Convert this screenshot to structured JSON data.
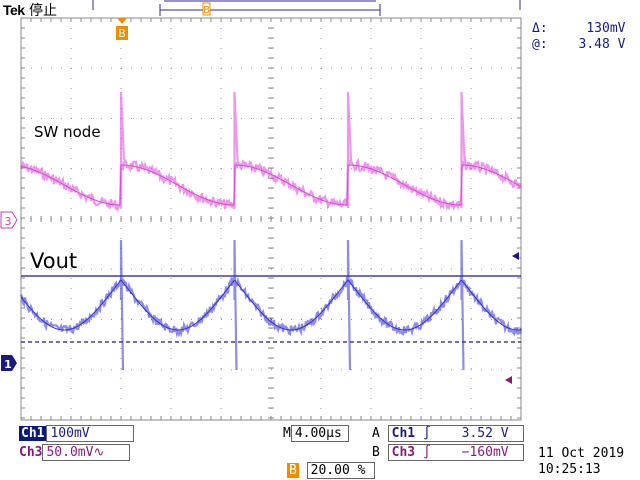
{
  "header": {
    "brand": "Tek",
    "status": "停止"
  },
  "cursor": {
    "delta_symbol": "Δ:",
    "delta_value": "130mV",
    "at_symbol": "@:",
    "at_value": "3.48 V"
  },
  "annotations": {
    "sw_node": "SW node",
    "vout": "Vout"
  },
  "markers": {
    "trigger_marker": "B",
    "ch3_marker": "3",
    "ch1_marker": "1"
  },
  "bottom": {
    "ch1_label": "Ch1",
    "ch1_scale": "100mV",
    "ch3_label": "Ch3",
    "ch3_scale": "50.0mV",
    "ch3_bw_icon": "bandwidth-limit-icon",
    "timebase_prefix": "M",
    "timebase_value": "4.00µs",
    "trig_a_letter": "A",
    "trig_a_ch": "Ch1",
    "trig_a_value": "3.52 V",
    "trig_b_letter": "B",
    "trig_b_ch": "Ch3",
    "trig_b_value": "−160mV",
    "trigger_pos_letter": "B",
    "trigger_pos_value": "20.00 %",
    "date": "11 Oct  2019",
    "time": "10:25:13"
  },
  "colors": {
    "ch1": "#2f2fd6",
    "ch3": "#e040e0",
    "grid": "#9a9a9a",
    "trigger": "#f08c00",
    "text": "#1a1a80"
  }
}
